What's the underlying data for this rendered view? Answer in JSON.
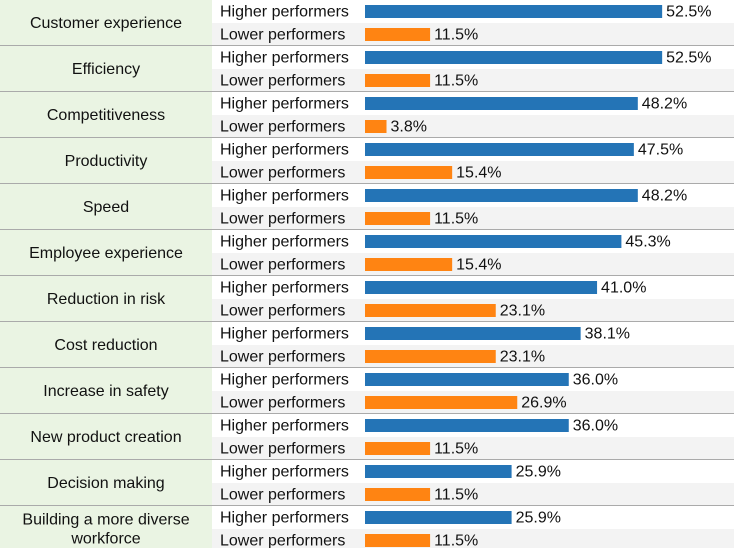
{
  "chart_data": {
    "type": "bar",
    "orientation": "horizontal",
    "title": "",
    "xlabel": "",
    "ylabel": "",
    "xlim": [
      0,
      60
    ],
    "value_suffix": "%",
    "grid": false,
    "categories": [
      "Customer experience",
      "Efficiency",
      "Competitiveness",
      "Productivity",
      "Speed",
      "Employee experience",
      "Reduction in risk",
      "Cost reduction",
      "Increase in safety",
      "New product creation",
      "Decision making",
      "Building a more diverse workforce"
    ],
    "series": [
      {
        "name": "Higher performers",
        "color": "#2474b6",
        "values": [
          52.5,
          52.5,
          48.2,
          47.5,
          48.2,
          45.3,
          41.0,
          38.1,
          36.0,
          36.0,
          25.9,
          25.9
        ]
      },
      {
        "name": "Lower performers",
        "color": "#ff8412",
        "values": [
          11.5,
          11.5,
          3.8,
          15.4,
          11.5,
          15.4,
          23.1,
          23.1,
          26.9,
          11.5,
          11.5,
          11.5
        ]
      }
    ]
  },
  "colors": {
    "category_bg": "#eaf4e3",
    "row_stripe": "#f3f3f3",
    "divider": "#aaaaaa"
  }
}
